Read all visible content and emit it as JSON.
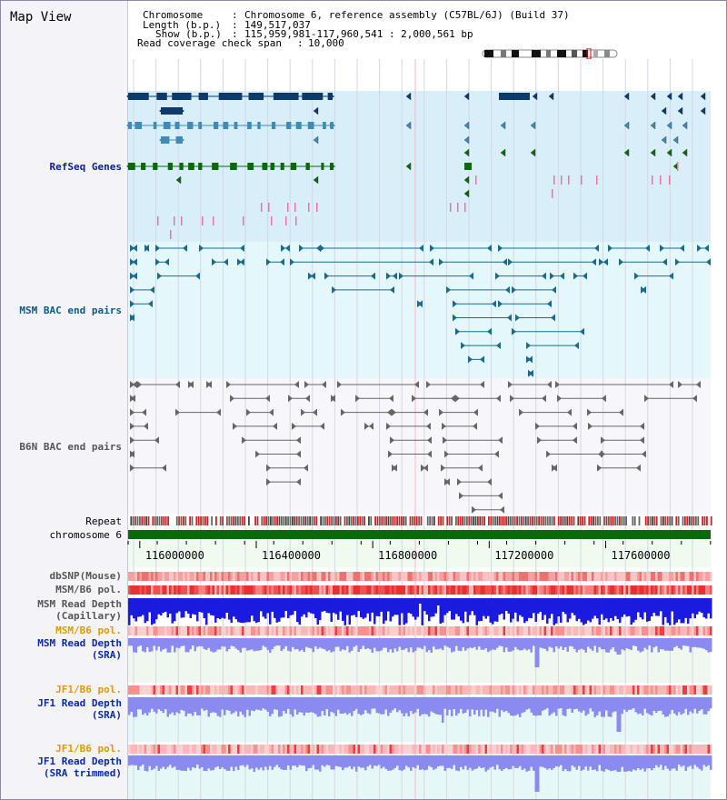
{
  "title": "Map View",
  "info": {
    "chromosome_key": "Chromosome",
    "chromosome_val": "Chromosome 6, reference assembly (C57BL/6J) (Build 37)",
    "length_key": "Length (b.p.)",
    "length_val": "149,517,037",
    "show_key": "Show (b.p.)",
    "show_val": "115,959,981-117,960,541 : 2,000,561 bp",
    "span_key": "Read coverage check span",
    "span_val": "10,000"
  },
  "tracks": {
    "refseq": "RefSeq Genes",
    "msm_bac": "MSM BAC end pairs",
    "b6n_bac": "B6N BAC end pairs",
    "repeat": "Repeat",
    "chromosome": "chromosome 6",
    "dbsnp": "dbSNP(Mouse)",
    "msm_b6_pol_1": "MSM/B6 pol.",
    "msm_depth_cap_1": "MSM Read Depth",
    "msm_depth_cap_2": "(Capillary)",
    "msm_b6_pol_2": "MSM/B6 pol.",
    "msm_depth_sra_1": "MSM Read Depth",
    "msm_depth_sra_2": "(SRA)",
    "jf1_b6_pol_1": "JF1/B6 pol.",
    "jf1_depth_1": "JF1 Read Depth",
    "jf1_depth_2": "(SRA)",
    "jf1_b6_pol_2": "JF1/B6 pol.",
    "jf1_trim_1": "JF1 Read Depth",
    "jf1_trim_2": "(SRA trimmed)"
  },
  "axis": {
    "ticks": [
      "116000000",
      "116400000",
      "116800000",
      "117200000",
      "117600000"
    ],
    "tick_values": [
      116000000,
      116400000,
      116800000,
      117200000,
      117600000
    ],
    "start": 115959981,
    "end": 117960541
  },
  "colors": {
    "refseq_bg": "#d8effa",
    "bac_bg": "#e4f8fb",
    "b6n_bg": "#f7f7fb",
    "gene_navy": "#0d3a6b",
    "gene_steel": "#3f8bb8",
    "gene_green": "#0a6a0a",
    "chrom_green": "#0a6a0a",
    "msm_pair": "#1a6a92",
    "b6n_pair": "#666666",
    "depth_capillary": "#1a1ae0",
    "depth_sra": "#8a8af0"
  }
}
